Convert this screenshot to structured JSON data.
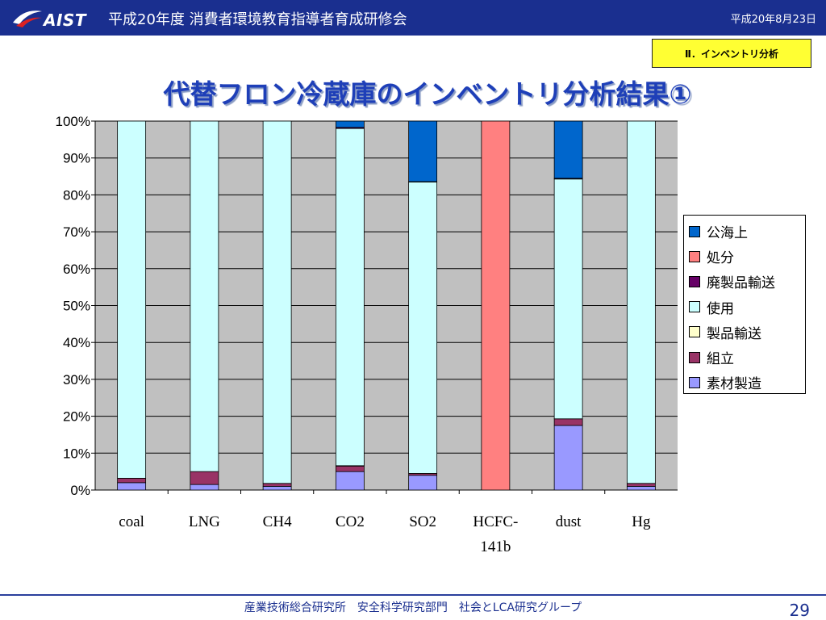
{
  "header": {
    "logo_text": "AIST",
    "title": "平成20年度  消費者環境教育指導者育成研修会",
    "date": "平成20年8月23日"
  },
  "section_badge": "Ⅱ．インベントリ分析",
  "slide_title": "代替フロン冷蔵庫のインベントリ分析結果①",
  "footer": {
    "organization": "産業技術総合研究所　安全科学研究部門　社会とLCA研究グループ",
    "page_number": "29"
  },
  "chart_data": {
    "type": "bar",
    "stacked": true,
    "percent": true,
    "categories": [
      "coal",
      "LNG",
      "CH4",
      "CO2",
      "SO2",
      "HCFC-\n141b",
      "dust",
      "Hg"
    ],
    "yticks": [
      "0%",
      "10%",
      "20%",
      "30%",
      "40%",
      "50%",
      "60%",
      "70%",
      "80%",
      "90%",
      "100%"
    ],
    "ylim": [
      0,
      100
    ],
    "grid": "horizontal",
    "legend_position": "right",
    "series": [
      {
        "name": "素材製造",
        "color": "#9999ff",
        "values": [
          2.0,
          1.5,
          1.0,
          5.0,
          4.0,
          0.0,
          17.5,
          1.0
        ]
      },
      {
        "name": "組立",
        "color": "#993366",
        "values": [
          1.2,
          3.5,
          0.8,
          1.5,
          0.5,
          0.0,
          1.8,
          0.8
        ]
      },
      {
        "name": "製品輸送",
        "color": "#ffffcc",
        "values": [
          0.0,
          0.0,
          0.0,
          0.1,
          0.0,
          0.0,
          0.0,
          0.0
        ]
      },
      {
        "name": "使用",
        "color": "#ccffff",
        "values": [
          96.8,
          95.0,
          98.2,
          91.4,
          79.0,
          0.0,
          65.0,
          98.2
        ]
      },
      {
        "name": "廃製品輸送",
        "color": "#660066",
        "values": [
          0.0,
          0.0,
          0.0,
          0.3,
          0.1,
          0.0,
          0.2,
          0.0
        ]
      },
      {
        "name": "処分",
        "color": "#ff8080",
        "values": [
          0.0,
          0.0,
          0.0,
          0.0,
          0.0,
          100.0,
          0.0,
          0.0
        ]
      },
      {
        "name": "公海上",
        "color": "#0066cc",
        "values": [
          0.0,
          0.0,
          0.0,
          1.7,
          16.4,
          0.0,
          15.5,
          0.0
        ]
      }
    ],
    "legend_order": [
      "公海上",
      "処分",
      "廃製品輸送",
      "使用",
      "製品輸送",
      "組立",
      "素材製造"
    ]
  }
}
